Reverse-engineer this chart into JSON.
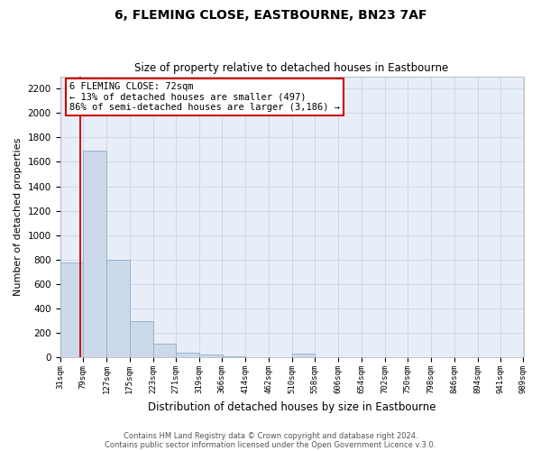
{
  "title": "6, FLEMING CLOSE, EASTBOURNE, BN23 7AF",
  "subtitle": "Size of property relative to detached houses in Eastbourne",
  "xlabel": "Distribution of detached houses by size in Eastbourne",
  "ylabel": "Number of detached properties",
  "bins": [
    "31sqm",
    "79sqm",
    "127sqm",
    "175sqm",
    "223sqm",
    "271sqm",
    "319sqm",
    "366sqm",
    "414sqm",
    "462sqm",
    "510sqm",
    "558sqm",
    "606sqm",
    "654sqm",
    "702sqm",
    "750sqm",
    "798sqm",
    "846sqm",
    "894sqm",
    "941sqm",
    "989sqm"
  ],
  "bar_values": [
    780,
    1690,
    800,
    300,
    115,
    40,
    25,
    10,
    5,
    5,
    30,
    0,
    0,
    0,
    0,
    0,
    0,
    0,
    0,
    0
  ],
  "bar_color": "#ccd9ea",
  "bar_edge_color": "#8aaece",
  "bar_edge_width": 0.6,
  "ylim": [
    0,
    2300
  ],
  "yticks": [
    0,
    200,
    400,
    600,
    800,
    1000,
    1200,
    1400,
    1600,
    1800,
    2000,
    2200
  ],
  "bin_starts": [
    31,
    79,
    127,
    175,
    223,
    271,
    319,
    366,
    414,
    462,
    510,
    558,
    606,
    654,
    702,
    750,
    798,
    846,
    894,
    941
  ],
  "bin_edges": [
    31,
    79,
    127,
    175,
    223,
    271,
    319,
    366,
    414,
    462,
    510,
    558,
    606,
    654,
    702,
    750,
    798,
    846,
    894,
    941,
    989
  ],
  "bin_width": 48,
  "property_line_x": 72,
  "property_line_color": "#cc0000",
  "annotation_title": "6 FLEMING CLOSE: 72sqm",
  "annotation_line1": "← 13% of detached houses are smaller (497)",
  "annotation_line2": "86% of semi-detached houses are larger (3,186) →",
  "annotation_box_edge_color": "#cc0000",
  "grid_color": "#c8d4e8",
  "background_color": "#e8eef8",
  "footnote1": "Contains HM Land Registry data © Crown copyright and database right 2024.",
  "footnote2": "Contains public sector information licensed under the Open Government Licence v.3.0."
}
